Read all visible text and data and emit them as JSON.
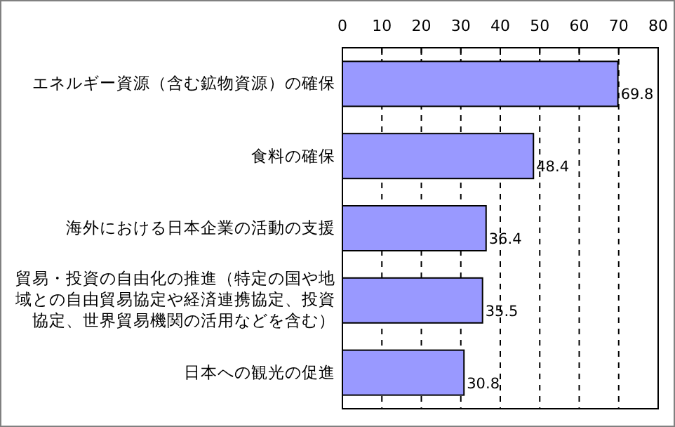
{
  "chart_data": {
    "type": "bar",
    "orientation": "horizontal",
    "categories": [
      "エネルギー資源（含む鉱物資源）の確保",
      "食料の確保",
      "海外における日本企業の活動の支援",
      "貿易・投資の自由化の推進（特定の国や地域との自由貿易協定や経済連携協定、投資協定、世界貿易機関の活用などを含む）",
      "日本への観光の促進"
    ],
    "values": [
      69.8,
      48.4,
      36.4,
      35.5,
      30.8
    ],
    "color": "#9999ff",
    "xlim": [
      0,
      80
    ],
    "xticks": [
      0,
      10,
      20,
      30,
      40,
      50,
      60,
      70,
      80
    ],
    "grid": "x",
    "data_labels": true
  }
}
